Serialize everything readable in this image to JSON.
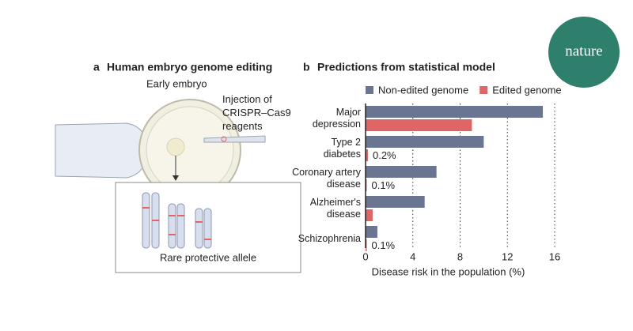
{
  "logo": "nature",
  "panel_a": {
    "letter": "a",
    "title": "Human embryo genome editing",
    "embryo_label": "Early embryo",
    "injection_label": "Injection of\nCRISPR–Cas9\nreagents",
    "allele_label": "Rare protective allele"
  },
  "chart_data": {
    "type": "hbar",
    "panel_letter": "b",
    "title": "Predictions from statistical model",
    "categories": [
      "Major\ndepression",
      "Type 2\ndiabetes",
      "Coronary artery\ndisease",
      "Alzheimer's\ndisease",
      "Schizophrenia"
    ],
    "series": [
      {
        "name": "Non-edited genome",
        "color": "#6a7592",
        "values": [
          15,
          10,
          6,
          5,
          1
        ]
      },
      {
        "name": "Edited genome",
        "color": "#e06666",
        "values": [
          9,
          0.2,
          0.1,
          0.6,
          0.1
        ],
        "value_labels": [
          null,
          "0.2%",
          "0.1%",
          null,
          "0.1%"
        ]
      }
    ],
    "xlabel": "Disease risk in the population (%)",
    "xlim": [
      0,
      16
    ],
    "xticks": [
      0,
      4,
      8,
      12,
      16
    ],
    "grid": true,
    "legend": "top"
  }
}
